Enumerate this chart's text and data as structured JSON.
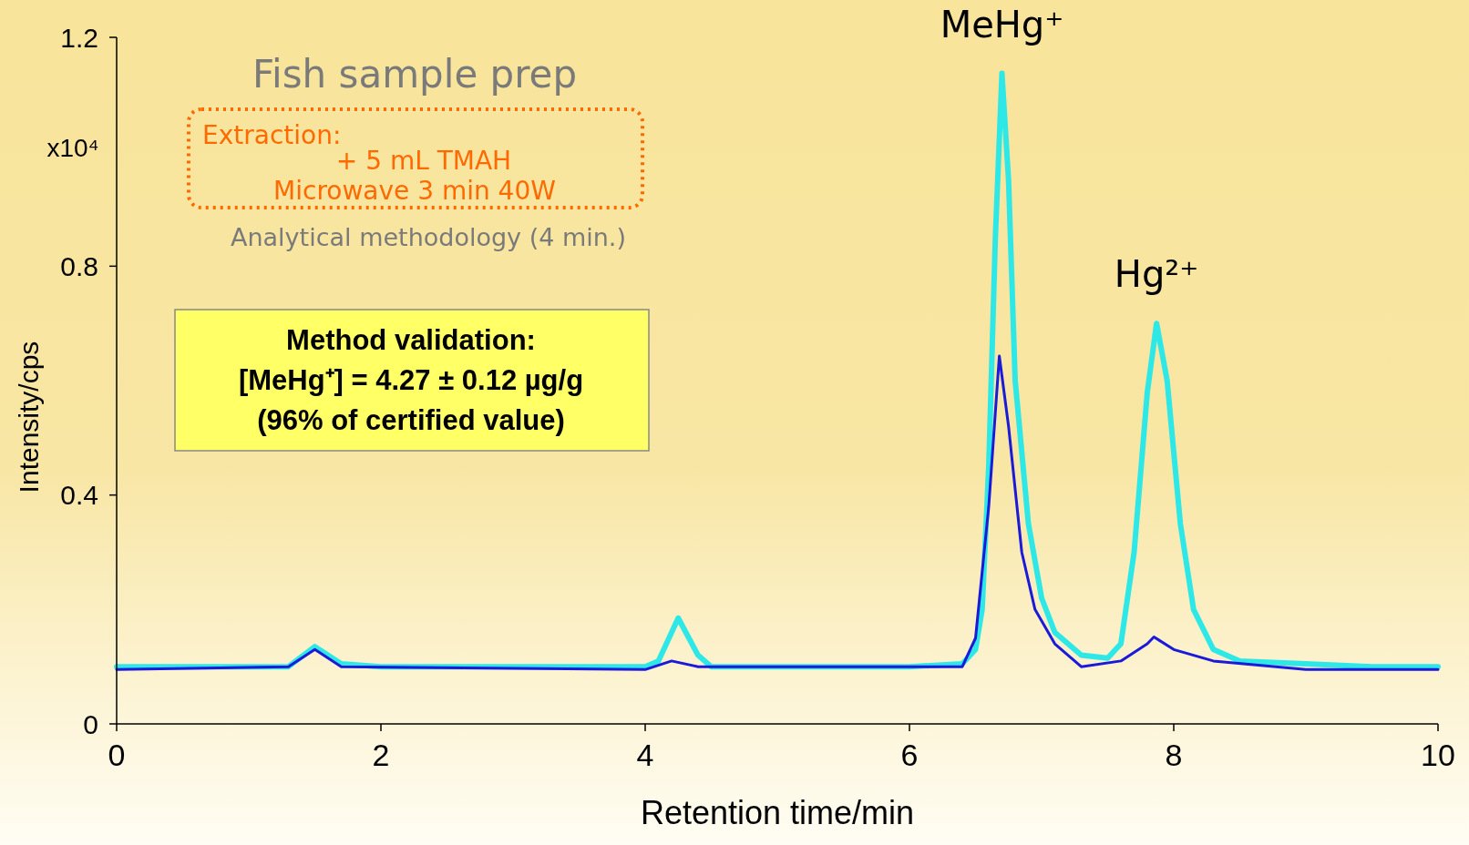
{
  "chart_data": {
    "type": "line",
    "xlabel": "Retention time/min",
    "ylabel": "Intensity/cps",
    "xlim": [
      0,
      10
    ],
    "xticks": [
      0,
      2,
      4,
      6,
      8,
      10
    ],
    "ylim": [
      0,
      1.2
    ],
    "yticks": [
      0,
      0.4,
      0.8,
      1.2
    ],
    "marker": "none",
    "line_style": "solid",
    "series": [
      {
        "color": "#2ee8e8",
        "x": [
          0,
          1.3,
          1.5,
          1.7,
          2,
          3,
          4,
          4.1,
          4.25,
          4.4,
          4.5,
          5,
          6,
          6.4,
          6.5,
          6.55,
          6.6,
          6.65,
          6.7,
          6.75,
          6.8,
          6.9,
          7.0,
          7.1,
          7.3,
          7.5,
          7.6,
          7.7,
          7.8,
          7.87,
          7.95,
          8.05,
          8.15,
          8.3,
          8.5,
          9,
          9.5,
          10
        ],
        "values": [
          0.1,
          0.1,
          0.135,
          0.105,
          0.1,
          0.1,
          0.1,
          0.11,
          0.185,
          0.12,
          0.1,
          0.1,
          0.1,
          0.105,
          0.13,
          0.2,
          0.45,
          0.85,
          1.137,
          0.95,
          0.6,
          0.35,
          0.22,
          0.16,
          0.12,
          0.115,
          0.14,
          0.3,
          0.58,
          0.7,
          0.6,
          0.35,
          0.2,
          0.13,
          0.11,
          0.105,
          0.1,
          0.1
        ]
      },
      {
        "color": "#1a1ad8",
        "x": [
          0,
          1.3,
          1.5,
          1.7,
          4,
          4.2,
          4.4,
          6,
          6.4,
          6.5,
          6.6,
          6.68,
          6.75,
          6.85,
          6.95,
          7.1,
          7.3,
          7.6,
          7.8,
          7.85,
          8.0,
          8.3,
          9,
          10
        ],
        "values": [
          0.095,
          0.1,
          0.13,
          0.1,
          0.095,
          0.11,
          0.1,
          0.1,
          0.1,
          0.15,
          0.38,
          0.643,
          0.52,
          0.3,
          0.2,
          0.14,
          0.1,
          0.11,
          0.14,
          0.152,
          0.13,
          0.11,
          0.095,
          0.095
        ]
      }
    ],
    "annotations": [
      {
        "text": "MeHg⁺",
        "x": 6.7,
        "y": 1.137
      },
      {
        "text": "Hg²⁺",
        "x": 7.87,
        "y": 0.7
      },
      "x10⁴",
      "Fish sample prep",
      "Extraction:",
      "+ 5 mL TMAH",
      "Microwave 3 min 40W",
      "Analytical methodology (4 min.)",
      "Method validation:",
      "[MeHg⁺] = 4.27 ± 0.12 µg/g",
      "(96% of certified value)"
    ]
  }
}
